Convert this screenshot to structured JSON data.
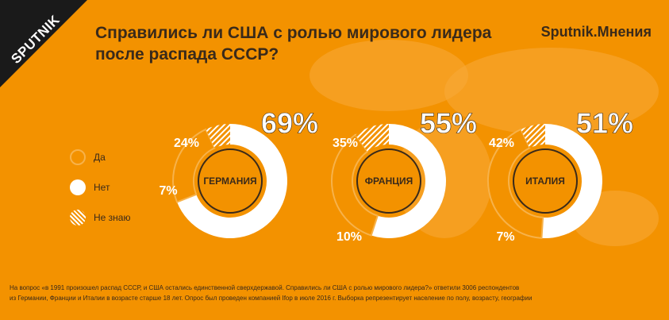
{
  "header": {
    "logo_text": "SPUTNIK",
    "title_line1": "Справились ли США с ролью мирового лидера",
    "title_line2": "после распада СССР?",
    "brand": "Sputnik.Мнения"
  },
  "legend": [
    {
      "label": "Да",
      "style": "orange"
    },
    {
      "label": "Нет",
      "style": "white"
    },
    {
      "label": "Не знаю",
      "style": "hatched"
    }
  ],
  "colors": {
    "background": "#f39200",
    "no": "#ffffff",
    "yes": "#f39200",
    "dont_know_hatch": "#ffffff",
    "text_dark": "#3a2a1a"
  },
  "chart_data": {
    "type": "pie",
    "title": "Справились ли США с ролью мирового лидера после распада СССР?",
    "categories": [
      "Нет",
      "Да",
      "Не знаю"
    ],
    "series": [
      {
        "name": "ГЕРМАНИЯ",
        "values": [
          69,
          24,
          7
        ],
        "labels": [
          "69%",
          "24%",
          "7%"
        ]
      },
      {
        "name": "ФРАНЦИЯ",
        "values": [
          55,
          35,
          10
        ],
        "labels": [
          "55%",
          "35%",
          "10%"
        ]
      },
      {
        "name": "ИТАЛИЯ",
        "values": [
          51,
          42,
          7
        ],
        "labels": [
          "51%",
          "42%",
          "7%"
        ]
      }
    ]
  },
  "footnote": {
    "line1": "На вопрос «в 1991 произошел распад СССР, и США остались единственной сверхдержавой. Справились ли США с ролью мирового лидера?» ответили 3006 респондентов",
    "line2": "из Германии, Франции и Италии в возрасте старше 18 лет. Опрос был проведен компанией Ifop в июле 2016 г. Выборка репрезентирует население по полу, возрасту, географии"
  }
}
